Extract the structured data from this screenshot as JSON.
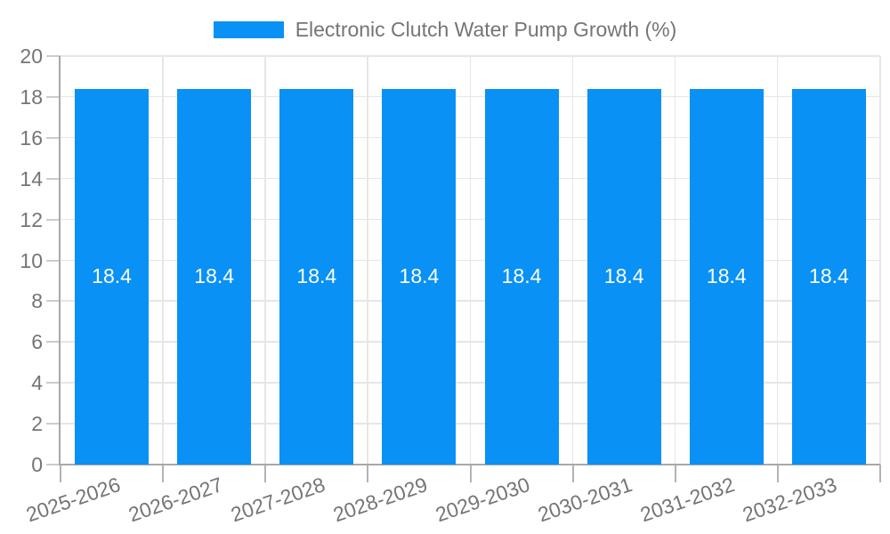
{
  "chart_data": {
    "type": "bar",
    "title": "Electronic Clutch Water Pump Growth (%)",
    "legend_position": "top-center",
    "categories": [
      "2025-2026",
      "2026-2027",
      "2027-2028",
      "2028-2029",
      "2029-2030",
      "2030-2031",
      "2031-2032",
      "2032-2033"
    ],
    "series": [
      {
        "name": "Electronic Clutch Water Pump Growth (%)",
        "values": [
          18.4,
          18.4,
          18.4,
          18.4,
          18.4,
          18.4,
          18.4,
          18.4
        ]
      }
    ],
    "bar_value_labels": [
      "18.4",
      "18.4",
      "18.4",
      "18.4",
      "18.4",
      "18.4",
      "18.4",
      "18.4"
    ],
    "xlabel": "",
    "ylabel": "",
    "ylim": [
      0,
      20
    ],
    "ytick_step": 2,
    "ytick_labels": [
      "0",
      "2",
      "4",
      "6",
      "8",
      "10",
      "12",
      "14",
      "16",
      "18",
      "20"
    ],
    "grid": true,
    "colors": {
      "bar": "#0991f5",
      "bar_label_text": "#ffffff",
      "axis_text": "#757575",
      "axis_line": "#a8a8a8",
      "gridline": "#e6e6e6",
      "y_tick": "#cccccc",
      "x_tick": "#b3b3b3",
      "background": "#ffffff"
    }
  }
}
